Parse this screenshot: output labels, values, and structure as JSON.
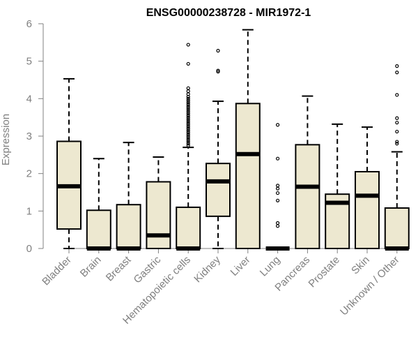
{
  "chart_data": {
    "type": "boxplot",
    "title": "ENSG00000238728 - MIR1972-1",
    "ylabel": "Expression",
    "xlabel": "",
    "ylim": [
      0,
      6
    ],
    "yticks": [
      0,
      1,
      2,
      3,
      4,
      5,
      6
    ],
    "grid": false,
    "box_color": "#EDE8D0",
    "line_color": "#000000",
    "axis_color": "#808080",
    "categories": [
      "Bladder",
      "Brain",
      "Breast",
      "Gastric",
      "Hematopoietic cells",
      "Kidney",
      "Liver",
      "Lung",
      "Pancreas",
      "Prostate",
      "Skin",
      "Unknown / Other"
    ],
    "boxes": [
      {
        "category": "Bladder",
        "min": 0,
        "q1": 0.52,
        "median": 1.66,
        "q3": 2.86,
        "max": 4.53,
        "outliers": []
      },
      {
        "category": "Brain",
        "min": 0,
        "q1": 0,
        "median": 0,
        "q3": 1.02,
        "max": 2.4,
        "outliers": []
      },
      {
        "category": "Breast",
        "min": 0,
        "q1": 0,
        "median": 0,
        "q3": 1.17,
        "max": 2.83,
        "outliers": []
      },
      {
        "category": "Gastric",
        "min": 0,
        "q1": 0,
        "median": 0.35,
        "q3": 1.78,
        "max": 2.44,
        "outliers": []
      },
      {
        "category": "Hematopoietic cells",
        "min": 0,
        "q1": 0,
        "median": 0,
        "q3": 1.1,
        "max": 2.7,
        "outliers": [
          2.75,
          2.8,
          2.85,
          2.9,
          2.95,
          3.0,
          3.05,
          3.1,
          3.15,
          3.2,
          3.25,
          3.3,
          3.35,
          3.4,
          3.45,
          3.5,
          3.55,
          3.6,
          3.65,
          3.7,
          3.75,
          3.8,
          3.85,
          3.9,
          3.95,
          4.0,
          4.05,
          4.12,
          4.2,
          4.28,
          4.93,
          5.44
        ]
      },
      {
        "category": "Kidney",
        "min": 0,
        "q1": 0.86,
        "median": 1.79,
        "q3": 2.27,
        "max": 3.93,
        "outliers": [
          4.72,
          4.75,
          5.28
        ]
      },
      {
        "category": "Liver",
        "min": 0,
        "q1": 0,
        "median": 2.52,
        "q3": 3.87,
        "max": 5.84,
        "outliers": []
      },
      {
        "category": "Lung",
        "min": 0,
        "q1": 0,
        "median": 0,
        "q3": 0,
        "max": 0,
        "outliers": [
          0.6,
          0.68,
          1.28,
          1.48,
          1.6,
          1.68,
          2.4,
          3.3
        ]
      },
      {
        "category": "Pancreas",
        "min": 0,
        "q1": 0,
        "median": 1.65,
        "q3": 2.77,
        "max": 4.07,
        "outliers": []
      },
      {
        "category": "Prostate",
        "min": 0,
        "q1": 0,
        "median": 1.22,
        "q3": 1.45,
        "max": 3.32,
        "outliers": []
      },
      {
        "category": "Skin",
        "min": 0,
        "q1": 0,
        "median": 1.41,
        "q3": 2.05,
        "max": 3.24,
        "outliers": []
      },
      {
        "category": "Unknown / Other",
        "min": 0,
        "q1": 0,
        "median": 0,
        "q3": 1.08,
        "max": 2.58,
        "outliers": [
          2.8,
          2.85,
          3.12,
          3.36,
          3.48,
          4.1,
          4.7,
          4.87
        ]
      }
    ]
  }
}
